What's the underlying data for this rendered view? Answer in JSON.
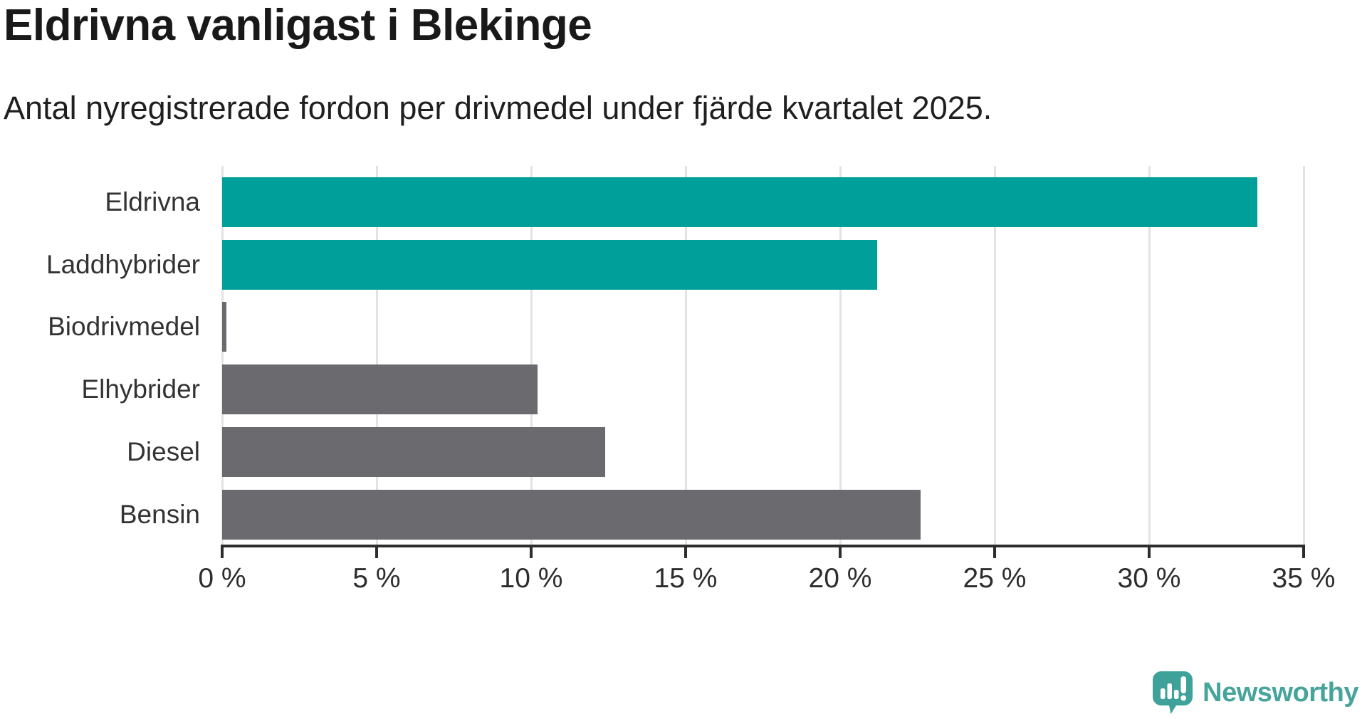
{
  "chart_data": {
    "type": "bar",
    "orientation": "horizontal",
    "title": "Eldrivna vanligast i Blekinge",
    "subtitle": "Antal nyregistrerade fordon per drivmedel under fjärde kvartalet 2025.",
    "categories": [
      "Eldrivna",
      "Laddhybrider",
      "Biodrivmedel",
      "Elhybrider",
      "Diesel",
      "Bensin"
    ],
    "values": [
      33.5,
      21.2,
      0.1,
      10.2,
      12.4,
      22.6
    ],
    "unit": "%",
    "colors": [
      "#009f99",
      "#009f99",
      "#6a6a6f",
      "#6a6a6f",
      "#6a6a6f",
      "#6a6a6f"
    ],
    "xlabel": "",
    "ylabel": "",
    "xlim": [
      0,
      35
    ],
    "x_tick_values": [
      0,
      5,
      10,
      15,
      20,
      25,
      30,
      35
    ],
    "x_ticks": [
      "0 %",
      "5 %",
      "10 %",
      "15 %",
      "20 %",
      "25 %",
      "30 %",
      "35 %"
    ],
    "grid": true,
    "legend": false,
    "highlight_color": "#009f99",
    "default_color": "#6a6a6f",
    "gridline_color": "#e3e3e3",
    "axis_color": "#2d2d2d"
  },
  "footer": {
    "brand": "Newsworthy",
    "brand_color": "#46a49c",
    "logo_color": "#3fa29a",
    "logo_icon": "newsworthy-pin-icon"
  }
}
